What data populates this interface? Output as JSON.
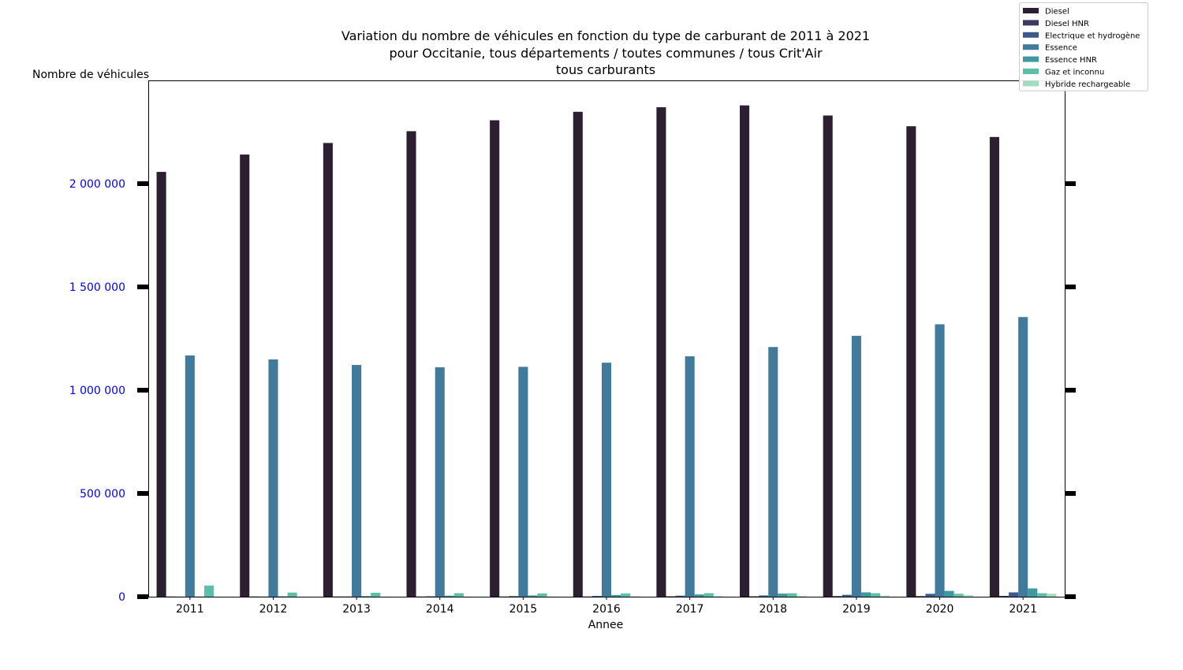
{
  "chart_data": {
    "type": "bar",
    "title": [
      "Variation du nombre de véhicules en fonction du type de carburant de 2011 à 2021",
      "pour Occitanie, tous départements / toutes communes / tous Crit'Air",
      "tous carburants"
    ],
    "xlabel": "Annee",
    "ylabel": "Nombre de véhicules",
    "ylim": [
      0,
      2500000
    ],
    "yticks": [
      0,
      500000,
      1000000,
      1500000,
      2000000
    ],
    "ytick_labels": [
      "0",
      "500 000",
      "1 000 000",
      "1 500 000",
      "2 000 000"
    ],
    "categories": [
      "2011",
      "2012",
      "2013",
      "2014",
      "2015",
      "2016",
      "2017",
      "2018",
      "2019",
      "2020",
      "2021"
    ],
    "grid": false,
    "legend_position": "top-right",
    "series": [
      {
        "name": "Diesel",
        "color": "#2b1f30",
        "values": [
          2057000,
          2141000,
          2197000,
          2254000,
          2307000,
          2348000,
          2370000,
          2379000,
          2330000,
          2278000,
          2226000
        ]
      },
      {
        "name": "Diesel HNR",
        "color": "#3a3b63",
        "values": [
          1000,
          1000,
          1000,
          1000,
          1000,
          1000,
          2000,
          2000,
          3000,
          3000,
          4000
        ]
      },
      {
        "name": "Electrique et hydrogène",
        "color": "#3c5a8e",
        "values": [
          500,
          800,
          1200,
          2000,
          3000,
          4000,
          5000,
          6000,
          9000,
          14000,
          21000
        ]
      },
      {
        "name": "Essence",
        "color": "#417a9a",
        "values": [
          1168000,
          1149000,
          1122000,
          1111000,
          1113000,
          1133000,
          1164000,
          1209000,
          1263000,
          1319000,
          1354000
        ]
      },
      {
        "name": "Essence HNR",
        "color": "#3e9a9f",
        "values": [
          1000,
          2000,
          3000,
          5000,
          6000,
          8000,
          11000,
          15000,
          21000,
          28000,
          40000
        ]
      },
      {
        "name": "Gaz et inconnu",
        "color": "#5cbfa8",
        "values": [
          54000,
          20000,
          19000,
          17000,
          16000,
          16000,
          17000,
          17000,
          17000,
          14000,
          17000
        ]
      },
      {
        "name": "Hybride rechargeable",
        "color": "#a2dbbf",
        "values": [
          200,
          400,
          600,
          900,
          1300,
          1800,
          2500,
          3000,
          5000,
          8000,
          14000
        ]
      }
    ]
  }
}
